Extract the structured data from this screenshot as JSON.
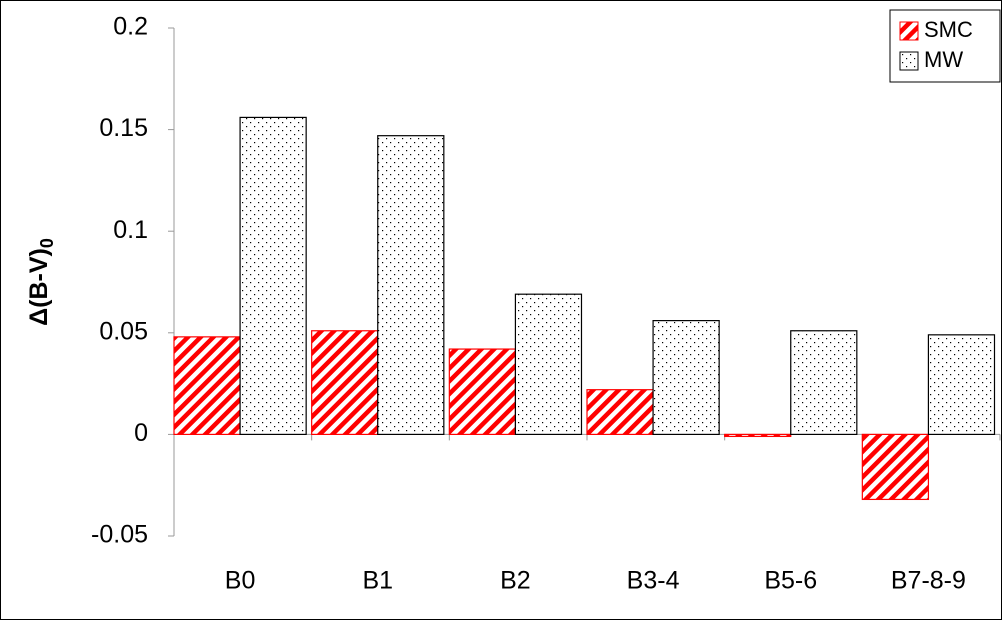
{
  "chart_data": {
    "type": "bar",
    "ylabel": "Δ(B-V)",
    "ylabel_subscript": "0",
    "categories": [
      "B0",
      "B1",
      "B2",
      "B3-4",
      "B5-6",
      "B7-8-9"
    ],
    "series": [
      {
        "name": "SMC",
        "color": "#ff0000",
        "pattern": "hatch",
        "values": [
          0.048,
          0.051,
          0.042,
          0.022,
          -0.001,
          -0.032
        ]
      },
      {
        "name": "MW",
        "color": "#000000",
        "pattern": "dots",
        "values": [
          0.156,
          0.147,
          0.069,
          0.056,
          0.051,
          0.049
        ]
      }
    ],
    "ylim": [
      -0.05,
      0.2
    ],
    "yticks": [
      -0.05,
      0,
      0.05,
      0.1,
      0.15,
      0.2
    ],
    "grid": false,
    "legend": "upper right"
  }
}
